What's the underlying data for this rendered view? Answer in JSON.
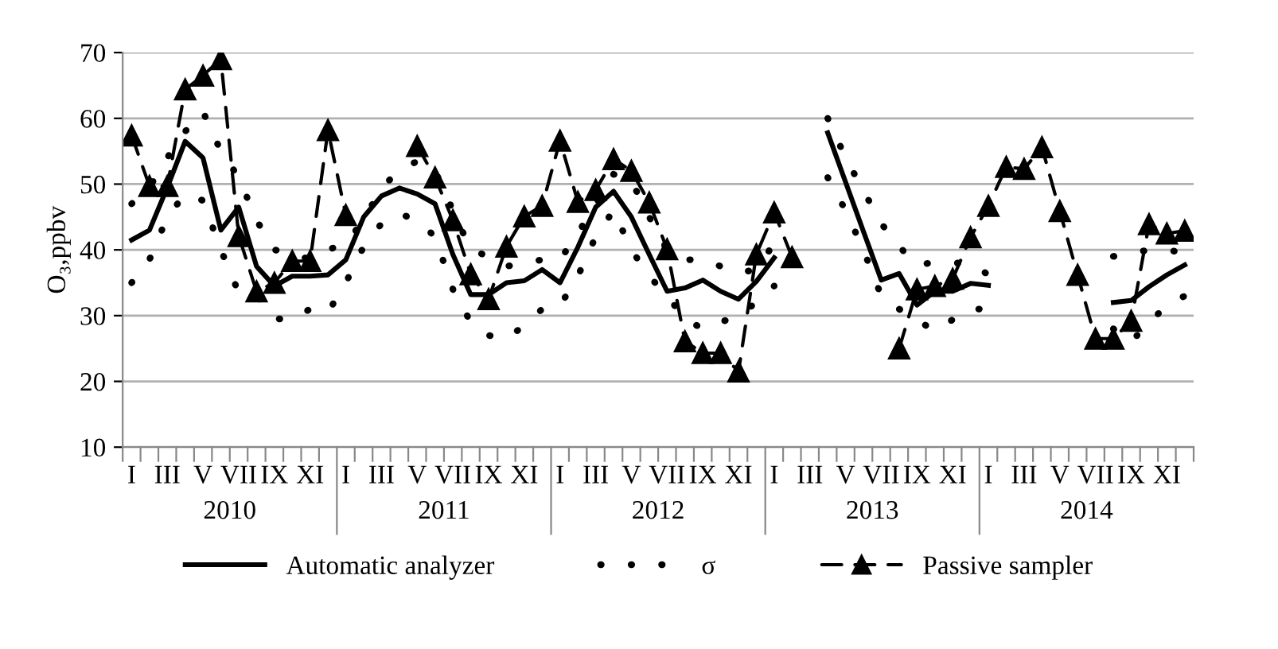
{
  "chart_data": {
    "type": "line",
    "ylabel": "O₃,ppbv",
    "categories": [
      "I",
      null,
      "III",
      null,
      "V",
      null,
      "VII",
      null,
      "IX",
      null,
      "XI",
      null,
      "I",
      null,
      "III",
      null,
      "V",
      null,
      "VII",
      null,
      "IX",
      null,
      "XI",
      null,
      "I",
      null,
      "III",
      null,
      "V",
      null,
      "VII",
      null,
      "IX",
      null,
      "XI",
      null,
      "I",
      null,
      "III",
      null,
      "V",
      null,
      "VII",
      null,
      "IX",
      null,
      "XI",
      null,
      "I",
      null,
      "III",
      null,
      "V",
      null,
      "VII",
      null,
      "IX",
      null,
      "XI",
      null
    ],
    "annotations": [
      "2010",
      "2011",
      "2012",
      "2013",
      "2014"
    ],
    "series": [
      {
        "name": "Automatic analyzer",
        "color": "#000000",
        "line_style": "solid",
        "marker": "none",
        "values": [
          41.5,
          43,
          49.5,
          56.5,
          54,
          43,
          46.5,
          37.5,
          34.5,
          36,
          36,
          36.2,
          38.5,
          45,
          48.2,
          49.4,
          48.5,
          47,
          39.3,
          33.2,
          33.2,
          35,
          35.3,
          37,
          35,
          40.4,
          46.5,
          48.9,
          45,
          39.3,
          33.7,
          34.2,
          35.4,
          33.7,
          32.5,
          35.2,
          38.8,
          null,
          null,
          57.8,
          50.3,
          42.8,
          35.4,
          36.4,
          31.6,
          33.7,
          33.7,
          34.9,
          34.6,
          null,
          null,
          null,
          null,
          null,
          null,
          32,
          32.3,
          34.4,
          36.2,
          37.7
        ]
      },
      {
        "name": "σ",
        "color": "#000000",
        "line_style": "dotted",
        "marker": "none",
        "values": [
          47,
          49.5,
          54,
          58,
          61,
          55,
          51,
          44.5,
          40,
          39.5,
          38.5,
          40,
          41,
          44.5,
          49.5,
          52,
          53.5,
          52,
          46,
          40,
          39,
          37.5,
          38,
          38.5,
          38.5,
          42.5,
          47,
          51.5,
          50.5,
          45,
          40,
          38.5,
          38.5,
          37.5,
          36.5,
          37,
          41,
          null,
          null,
          60,
          54,
          49,
          44,
          40.5,
          37.7,
          38.1,
          38,
          38,
          36.2,
          null,
          null,
          null,
          null,
          null,
          null,
          39,
          39.5,
          40,
          40,
          39.5
        ]
      },
      {
        "color": "#000000",
        "line_style": "dotted",
        "marker": "none",
        "values": [
          35,
          38.5,
          45,
          48.5,
          47.5,
          40,
          33.5,
          33,
          29.5,
          29.5,
          31,
          30.5,
          35,
          40.5,
          44,
          45.5,
          44.5,
          42,
          34,
          29,
          27,
          26.5,
          28.5,
          31,
          31.5,
          36,
          42,
          46,
          40,
          36,
          33,
          29.5,
          28,
          29,
          30,
          32,
          34.5,
          null,
          null,
          51,
          46,
          40,
          33,
          31,
          29.3,
          27.7,
          29.4,
          31,
          31,
          null,
          null,
          null,
          null,
          null,
          null,
          28,
          26,
          29,
          31.5,
          33
        ]
      },
      {
        "name": "Passive sampler",
        "color": "#000000",
        "line_style": "dashed",
        "marker": "triangle",
        "values": [
          57.4,
          49.7,
          49.7,
          64.4,
          66.5,
          69,
          42.1,
          33.7,
          35,
          38.3,
          38.3,
          58.2,
          45.3,
          null,
          null,
          null,
          55.8,
          51,
          44.5,
          36.3,
          32.5,
          40.5,
          45.1,
          46.7,
          56.6,
          47.3,
          49.1,
          53.8,
          52,
          47.2,
          40.1,
          26.1,
          24.3,
          24.3,
          21.5,
          39.3,
          45.7,
          38.9,
          null,
          null,
          null,
          null,
          null,
          25,
          34,
          34.5,
          35.6,
          41.9,
          46.7,
          52.6,
          52.3,
          55.6,
          45.9,
          36.2,
          26.5,
          26.5,
          29.2,
          43.9,
          42.5,
          42.9
        ]
      }
    ],
    "ylim": [
      10,
      70
    ],
    "yticks": [
      10,
      20,
      30,
      40,
      50,
      60,
      70
    ],
    "grid": "y",
    "legend": "bottom"
  }
}
